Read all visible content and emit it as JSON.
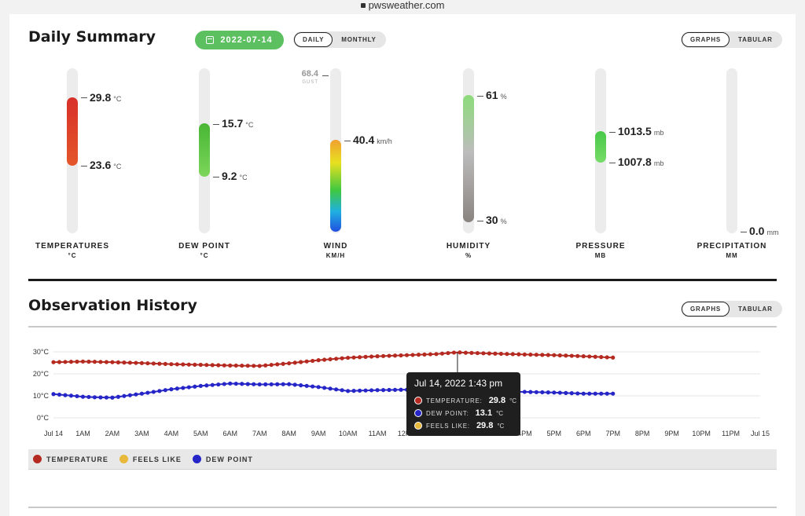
{
  "browser": {
    "url": "pwsweather.com"
  },
  "summary": {
    "title": "Daily Summary",
    "date": "2022-07-14",
    "period_options": [
      "DAILY",
      "MONTHLY"
    ],
    "view_options": [
      "GRAPHS",
      "TABULAR"
    ]
  },
  "gauges": {
    "temperature": {
      "high": "29.8",
      "low": "23.6",
      "unit": "°C",
      "label": "TEMPERATURES",
      "sublabel": "°C",
      "color": "#e04226"
    },
    "dew_point": {
      "high": "15.7",
      "low": "9.2",
      "unit": "°C",
      "label": "DEW POINT",
      "sublabel": "°C",
      "color": "#5cc43c"
    },
    "wind": {
      "gust": "68.4",
      "gust_label": "GUST",
      "value": "40.4",
      "unit": "km/h",
      "label": "WIND",
      "sublabel": "KM/H"
    },
    "humidity": {
      "high": "61",
      "low": "30",
      "unit": "%",
      "label": "HUMIDITY",
      "sublabel": "%"
    },
    "pressure": {
      "high": "1013.5",
      "low": "1007.8",
      "unit": "mb",
      "label": "PRESSURE",
      "sublabel": "MB",
      "color": "#5cd45c"
    },
    "precipitation": {
      "value": "0.0",
      "unit": "mm",
      "label": "PRECIPITATION",
      "sublabel": "MM"
    }
  },
  "history": {
    "title": "Observation History",
    "view_options": [
      "GRAPHS",
      "TABULAR"
    ],
    "tooltip": {
      "time": "Jul 14, 2022 1:43 pm",
      "rows": [
        {
          "label": "TEMPERATURE:",
          "value": "29.8",
          "unit": "°C",
          "color": "#b52a20"
        },
        {
          "label": "DEW POINT:",
          "value": "13.1",
          "unit": "°C",
          "color": "#2626c8"
        },
        {
          "label": "FEELS LIKE:",
          "value": "29.8",
          "unit": "°C",
          "color": "#e8b83a"
        }
      ]
    },
    "legend": [
      {
        "label": "TEMPERATURE",
        "color": "#b52a20"
      },
      {
        "label": "FEELS LIKE",
        "color": "#e8b83a"
      },
      {
        "label": "DEW POINT",
        "color": "#2626c8"
      }
    ]
  },
  "chart_data": {
    "type": "line",
    "x_ticks": [
      "Jul 14",
      "1AM",
      "2AM",
      "3AM",
      "4AM",
      "5AM",
      "6AM",
      "7AM",
      "8AM",
      "9AM",
      "10AM",
      "11AM",
      "12PM",
      "1PM",
      "2PM",
      "3PM",
      "4PM",
      "5PM",
      "6PM",
      "7PM",
      "8PM",
      "9PM",
      "10PM",
      "11PM",
      "Jul 15"
    ],
    "y_ticks": [
      "0°C",
      "10°C",
      "20°C",
      "30°C"
    ],
    "ylim": [
      0,
      30
    ],
    "xlim_hours": [
      0,
      24
    ],
    "series": [
      {
        "name": "TEMPERATURE",
        "color": "#b52a20",
        "x": [
          0,
          1,
          2,
          3,
          4,
          5,
          6,
          7,
          8,
          9,
          10,
          11,
          12,
          13,
          13.72,
          14,
          15,
          16,
          17,
          18,
          19
        ],
        "y": [
          25.3,
          25.6,
          25.3,
          24.9,
          24.4,
          24.1,
          23.8,
          23.6,
          24.8,
          26.2,
          27.3,
          28.0,
          28.5,
          29.0,
          29.8,
          29.6,
          29.2,
          28.8,
          28.5,
          28.0,
          27.4
        ]
      },
      {
        "name": "DEW POINT",
        "color": "#2626c8",
        "x": [
          0,
          1,
          1.5,
          2,
          3,
          4,
          5,
          6,
          7,
          8,
          9,
          10,
          11,
          12,
          13,
          13.72,
          14,
          15,
          16,
          17,
          18,
          19
        ],
        "y": [
          10.8,
          9.6,
          9.3,
          9.2,
          11.0,
          13.0,
          14.5,
          15.6,
          15.2,
          15.3,
          14.0,
          12.2,
          12.6,
          12.8,
          13.0,
          13.1,
          12.5,
          12.0,
          11.8,
          11.5,
          11.0,
          11.0
        ]
      }
    ]
  }
}
